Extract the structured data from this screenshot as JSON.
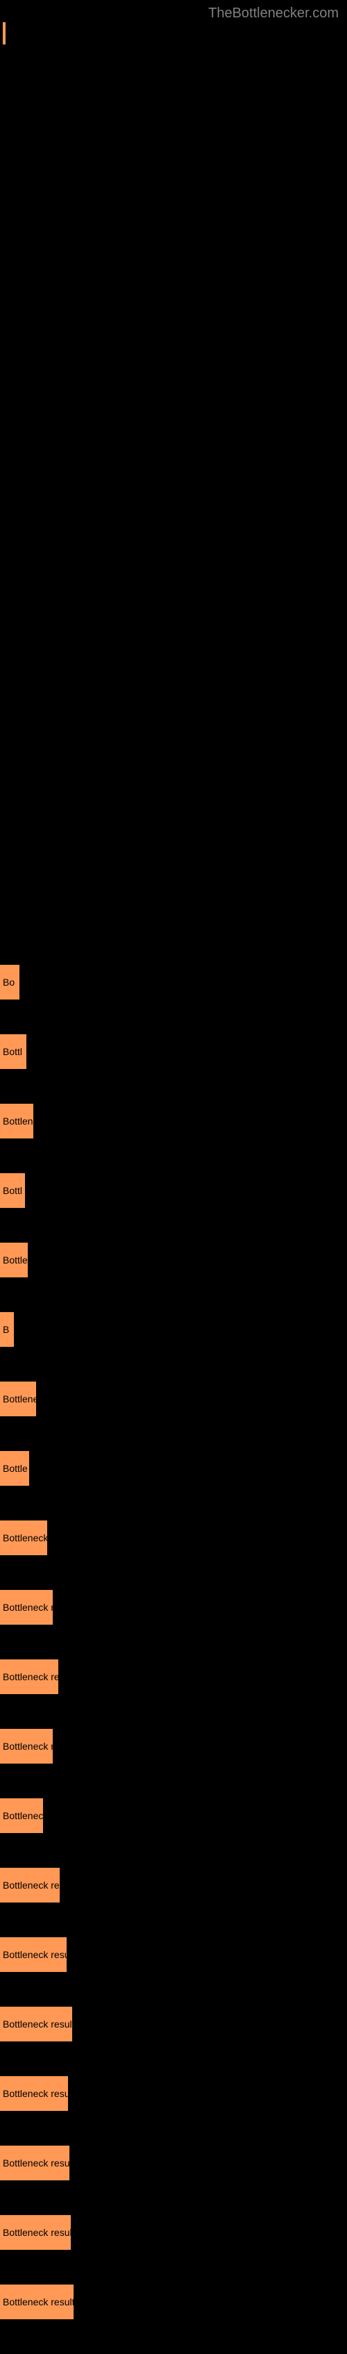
{
  "header": {
    "site_title": "TheBottlenecker.com"
  },
  "chart": {
    "background_color": "#000000",
    "bar_color": "#ff9955",
    "label_color": "#000000",
    "label_fontsize": 14,
    "bars": [
      {
        "width": 28,
        "label": "Bo"
      },
      {
        "width": 38,
        "label": "Bottl"
      },
      {
        "width": 48,
        "label": "Bottlene"
      },
      {
        "width": 36,
        "label": "Bottl"
      },
      {
        "width": 40,
        "label": "Bottle"
      },
      {
        "width": 20,
        "label": "B"
      },
      {
        "width": 52,
        "label": "Bottlenec"
      },
      {
        "width": 42,
        "label": "Bottle"
      },
      {
        "width": 68,
        "label": "Bottleneck re"
      },
      {
        "width": 76,
        "label": "Bottleneck res"
      },
      {
        "width": 84,
        "label": "Bottleneck result"
      },
      {
        "width": 76,
        "label": "Bottleneck res"
      },
      {
        "width": 62,
        "label": "Bottleneck r"
      },
      {
        "width": 86,
        "label": "Bottleneck resu"
      },
      {
        "width": 96,
        "label": "Bottleneck result"
      },
      {
        "width": 104,
        "label": "Bottleneck result"
      },
      {
        "width": 98,
        "label": "Bottleneck result"
      },
      {
        "width": 100,
        "label": "Bottleneck result"
      },
      {
        "width": 102,
        "label": "Bottleneck result"
      },
      {
        "width": 106,
        "label": "Bottleneck result"
      }
    ]
  }
}
